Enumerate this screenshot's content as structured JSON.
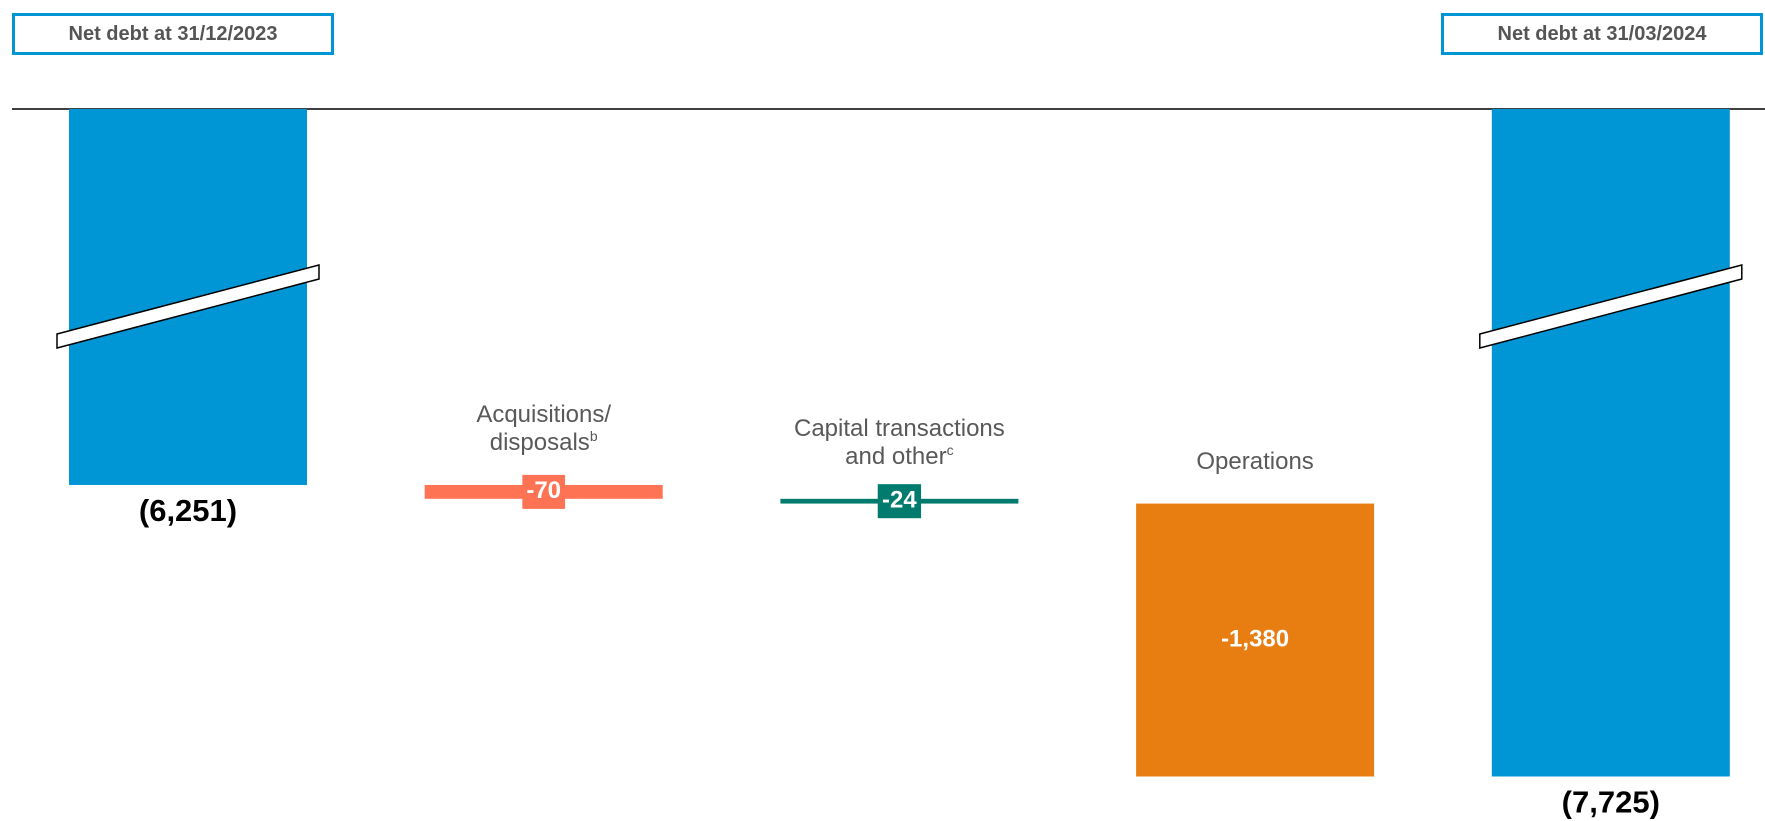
{
  "chart_data": {
    "type": "waterfall",
    "categories": [
      "Net debt at 31/12/2023",
      "Acquisitions/ disposals",
      "Capital transactions and other",
      "Operations",
      "Net debt at 31/03/2024"
    ],
    "category_marks": [
      null,
      "b",
      "c",
      null,
      null
    ],
    "measures": [
      "total",
      "relative",
      "relative",
      "relative",
      "total"
    ],
    "values": [
      -6251,
      -70,
      -24,
      -1380,
      -7725
    ],
    "value_labels": [
      "(6,251)",
      "-70",
      "-24",
      "-1,380",
      "(7,725)"
    ],
    "colors": [
      "#0096d6",
      "#ff7355",
      "#007b6e",
      "#e87e12",
      "#0096d6"
    ],
    "ylim": [
      -7950,
      -4350
    ],
    "axis_break": true
  }
}
